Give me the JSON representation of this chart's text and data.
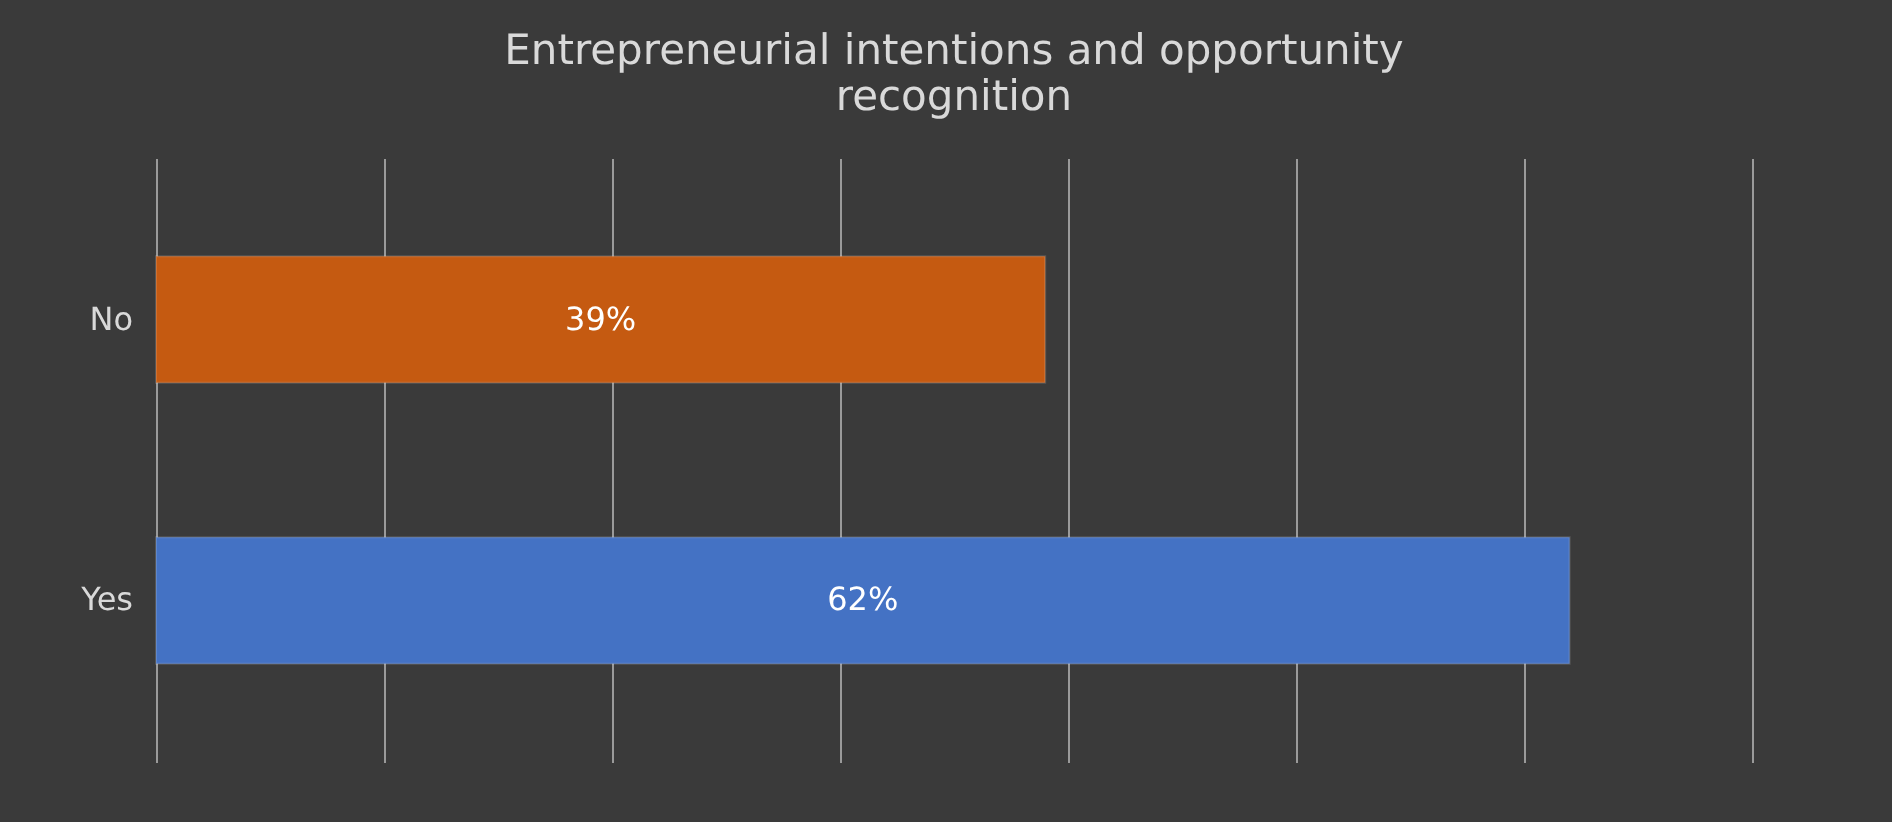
{
  "chart_data": {
    "type": "bar",
    "orientation": "horizontal",
    "title": "Entrepreneurial intentions and opportunity recognition",
    "categories": [
      "No",
      "Yes"
    ],
    "values": [
      39,
      62
    ],
    "colors": [
      "#c55a11",
      "#4472c4"
    ],
    "value_labels": [
      "39%",
      "62%"
    ],
    "xlim": [
      0,
      70
    ],
    "xticks": [
      {
        "value": 0,
        "label": null
      },
      {
        "value": 10,
        "label": null
      },
      {
        "value": 20,
        "label": null
      },
      {
        "value": 30,
        "label": null
      },
      {
        "value": 40,
        "label": null
      },
      {
        "value": 50,
        "label": null
      },
      {
        "value": 60,
        "label": null
      },
      {
        "value": 70,
        "label": null
      }
    ],
    "grid": "x",
    "tick_labels": "y"
  }
}
